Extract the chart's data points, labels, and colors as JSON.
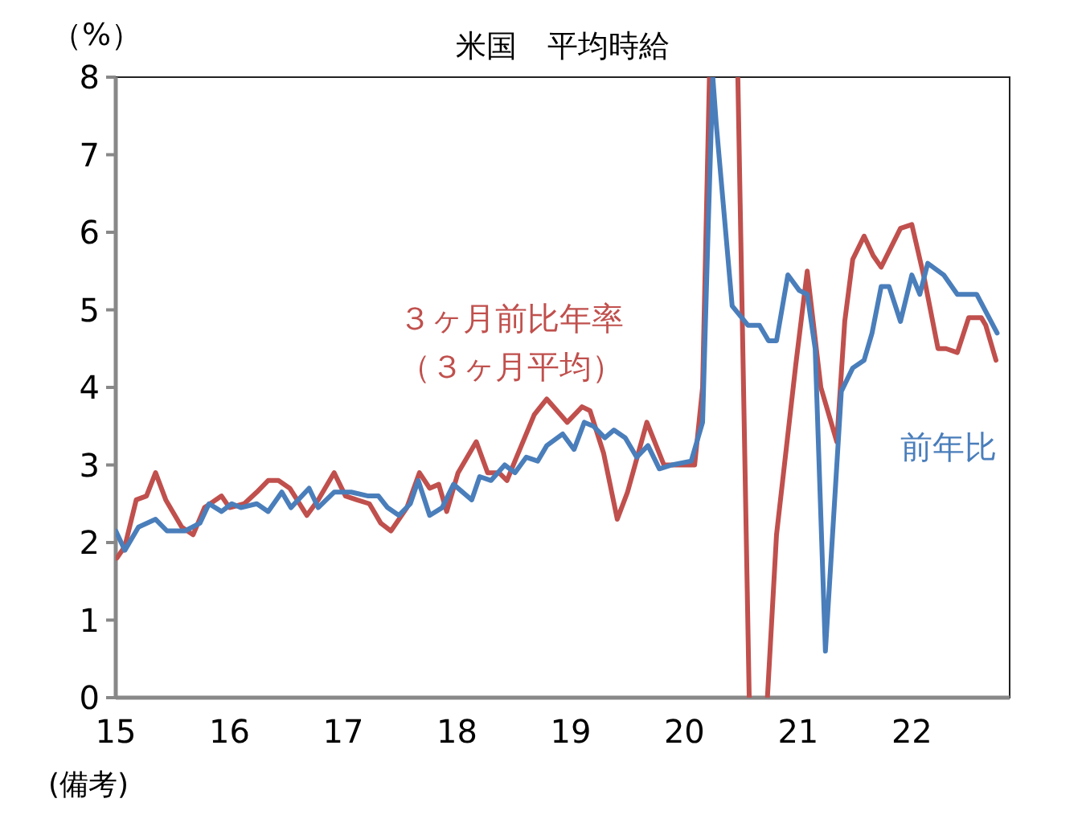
{
  "chart_data": {
    "type": "line",
    "title": "米国　平均時給",
    "ylabel": "（%）",
    "annotations": [
      "(備考)"
    ],
    "xlim": [
      2015,
      2022.86
    ],
    "ylim": [
      0,
      8
    ],
    "xticks": [
      {
        "value": 2015,
        "label": "15"
      },
      {
        "value": 2016,
        "label": "16"
      },
      {
        "value": 2017,
        "label": "17"
      },
      {
        "value": 2018,
        "label": "18"
      },
      {
        "value": 2019,
        "label": "19"
      },
      {
        "value": 2020,
        "label": "20"
      },
      {
        "value": 2021,
        "label": "21"
      },
      {
        "value": 2022,
        "label": "22"
      }
    ],
    "yticks": [
      0,
      1,
      2,
      3,
      4,
      5,
      6,
      7,
      8
    ],
    "grid": false,
    "marker": "none",
    "line_style": "solid",
    "series": [
      {
        "name": "３ヶ月前比年率（３ヶ月平均）",
        "color": "#c0504d",
        "x": [
          2015.01,
          2015.08,
          2015.18,
          2015.27,
          2015.35,
          2015.44,
          2015.58,
          2015.68,
          2015.78,
          2015.93,
          2016.0,
          2016.13,
          2016.24,
          2016.34,
          2016.43,
          2016.53,
          2016.68,
          2016.78,
          2016.92,
          2017.02,
          2017.12,
          2017.23,
          2017.33,
          2017.42,
          2017.56,
          2017.67,
          2017.76,
          2017.84,
          2017.91,
          2018.01,
          2018.17,
          2018.27,
          2018.37,
          2018.44,
          2018.51,
          2018.68,
          2018.79,
          2018.97,
          2019.1,
          2019.17,
          2019.29,
          2019.41,
          2019.5,
          2019.67,
          2019.82,
          2020.09,
          2020.16,
          2020.22
        ],
        "values": [
          1.8,
          1.95,
          2.55,
          2.6,
          2.9,
          2.55,
          2.2,
          2.1,
          2.45,
          2.6,
          2.45,
          2.5,
          2.65,
          2.8,
          2.8,
          2.7,
          2.35,
          2.55,
          2.9,
          2.6,
          2.55,
          2.5,
          2.25,
          2.15,
          2.45,
          2.9,
          2.7,
          2.75,
          2.4,
          2.9,
          3.3,
          2.9,
          2.9,
          2.8,
          3.05,
          3.65,
          3.85,
          3.55,
          3.75,
          3.7,
          3.15,
          2.3,
          2.65,
          3.55,
          3.0,
          3.0,
          4.0,
          8.0
        ]
      },
      {
        "color": "#c0504d",
        "x": [
          2020.47,
          2020.57
        ],
        "values": [
          8.0,
          0.0
        ]
      },
      {
        "color": "#c0504d",
        "x": [
          2020.73,
          2020.81,
          2020.98,
          2021.08,
          2021.2,
          2021.34,
          2021.41,
          2021.48,
          2021.58,
          2021.66,
          2021.73,
          2021.9,
          2022.0,
          2022.11,
          2022.23,
          2022.3,
          2022.4,
          2022.5,
          2022.61,
          2022.65,
          2022.74
        ],
        "values": [
          0.0,
          2.1,
          4.3,
          5.5,
          4.0,
          3.3,
          4.85,
          5.65,
          5.95,
          5.7,
          5.55,
          6.05,
          6.1,
          5.4,
          4.5,
          4.5,
          4.45,
          4.9,
          4.9,
          4.8,
          4.35
        ]
      },
      {
        "name": "前年比",
        "color": "#4a7ebb",
        "x": [
          2015.0,
          2015.08,
          2015.2,
          2015.35,
          2015.45,
          2015.61,
          2015.74,
          2015.82,
          2015.93,
          2016.02,
          2016.1,
          2016.24,
          2016.34,
          2016.46,
          2016.54,
          2016.7,
          2016.78,
          2016.92,
          2017.07,
          2017.22,
          2017.31,
          2017.39,
          2017.49,
          2017.59,
          2017.66,
          2017.76,
          2017.87,
          2017.97,
          2018.13,
          2018.2,
          2018.3,
          2018.42,
          2018.51,
          2018.61,
          2018.71,
          2018.79,
          2018.93,
          2019.03,
          2019.12,
          2019.2,
          2019.3,
          2019.38,
          2019.48,
          2019.58,
          2019.68,
          2019.78,
          2019.89,
          2020.06,
          2020.16,
          2020.21,
          2020.25,
          2020.28,
          2020.42,
          2020.56,
          2020.66,
          2020.74,
          2020.81,
          2020.91,
          2021.01,
          2021.08,
          2021.15,
          2021.24,
          2021.38,
          2021.48,
          2021.58,
          2021.65,
          2021.73,
          2021.8,
          2021.9,
          2022.0,
          2022.07,
          2022.14,
          2022.28,
          2022.4,
          2022.57,
          2022.75
        ],
        "values": [
          2.15,
          1.9,
          2.2,
          2.3,
          2.15,
          2.15,
          2.25,
          2.5,
          2.4,
          2.5,
          2.45,
          2.5,
          2.4,
          2.65,
          2.45,
          2.7,
          2.45,
          2.65,
          2.65,
          2.6,
          2.6,
          2.45,
          2.35,
          2.5,
          2.8,
          2.35,
          2.45,
          2.75,
          2.55,
          2.85,
          2.8,
          3.0,
          2.9,
          3.1,
          3.05,
          3.25,
          3.4,
          3.2,
          3.55,
          3.5,
          3.35,
          3.45,
          3.35,
          3.1,
          3.25,
          2.95,
          3.0,
          3.05,
          3.55,
          6.1,
          8.0,
          7.4,
          5.05,
          4.8,
          4.8,
          4.6,
          4.6,
          5.45,
          5.25,
          5.2,
          4.5,
          0.6,
          3.95,
          4.25,
          4.35,
          4.7,
          5.3,
          5.3,
          4.85,
          5.45,
          5.2,
          5.6,
          5.45,
          5.2,
          5.2,
          4.7
        ]
      }
    ]
  }
}
